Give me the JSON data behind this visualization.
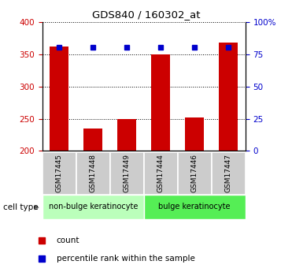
{
  "title": "GDS840 / 160302_at",
  "samples": [
    "GSM17445",
    "GSM17448",
    "GSM17449",
    "GSM17444",
    "GSM17446",
    "GSM17447"
  ],
  "counts": [
    362,
    235,
    250,
    349,
    252,
    368
  ],
  "percentile_ranks": [
    80,
    80,
    80,
    80,
    80,
    80
  ],
  "ylim_left": [
    200,
    400
  ],
  "ylim_right": [
    0,
    100
  ],
  "yticks_left": [
    200,
    250,
    300,
    350,
    400
  ],
  "yticks_right": [
    0,
    25,
    50,
    75,
    100
  ],
  "ytick_labels_right": [
    "0",
    "25",
    "50",
    "75",
    "100%"
  ],
  "bar_color": "#cc0000",
  "dot_color": "#0000cc",
  "group1_label": "non-bulge keratinocyte",
  "group2_label": "bulge keratinocyte",
  "group1_indices": [
    0,
    1,
    2
  ],
  "group2_indices": [
    3,
    4,
    5
  ],
  "group1_color": "#bbffbb",
  "group2_color": "#55ee55",
  "sample_box_color": "#cccccc",
  "legend_count_label": "count",
  "legend_pct_label": "percentile rank within the sample",
  "cell_type_label": "cell type",
  "bar_width": 0.55
}
